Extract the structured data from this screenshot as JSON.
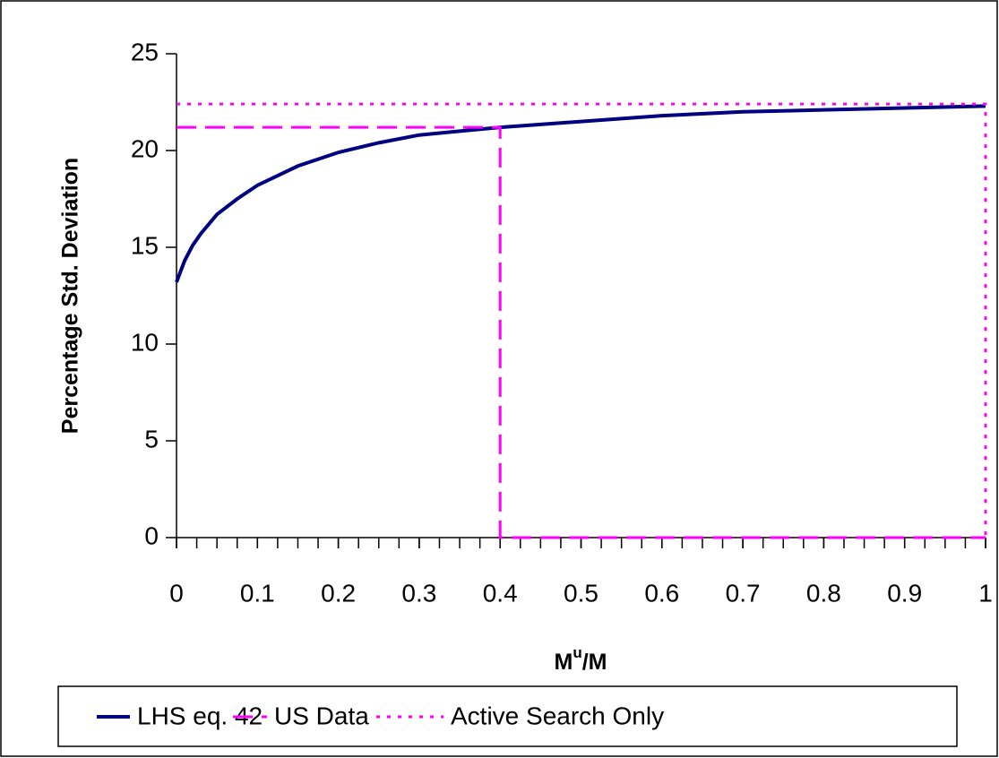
{
  "chart_data": {
    "type": "line",
    "ylabel": "Percentage Std. Deviation",
    "xlabel": [
      "M",
      "u",
      "/M"
    ],
    "xlim": [
      0,
      1
    ],
    "ylim": [
      0,
      25
    ],
    "xticks": [
      0,
      0.1,
      0.2,
      0.3,
      0.4,
      0.5,
      0.6,
      0.7,
      0.8,
      0.9,
      1
    ],
    "xminorticks": [
      0,
      0.025,
      0.05,
      0.075,
      0.1,
      0.125,
      0.15,
      0.175,
      0.2,
      0.225,
      0.25,
      0.275,
      0.3,
      0.325,
      0.35,
      0.375,
      0.4,
      0.425,
      0.45,
      0.475,
      0.5,
      0.525,
      0.55,
      0.575,
      0.6,
      0.625,
      0.65,
      0.675,
      0.7,
      0.725,
      0.75,
      0.775,
      0.8,
      0.825,
      0.85,
      0.875,
      0.9,
      0.925,
      0.95,
      0.975,
      1
    ],
    "yticks": [
      0,
      5,
      10,
      15,
      20,
      25
    ],
    "legend": "bottom",
    "series": [
      {
        "name": "LHS eq. 42",
        "color": "#000080",
        "style": "solid",
        "x": [
          0,
          0.01,
          0.02,
          0.03,
          0.05,
          0.075,
          0.1,
          0.15,
          0.2,
          0.25,
          0.3,
          0.35,
          0.4,
          0.5,
          0.6,
          0.7,
          0.8,
          0.9,
          1
        ],
        "values": [
          13.2,
          14.3,
          15.1,
          15.7,
          16.7,
          17.5,
          18.2,
          19.2,
          19.9,
          20.4,
          20.8,
          21.0,
          21.2,
          21.5,
          21.8,
          22.0,
          22.1,
          22.2,
          22.3
        ]
      },
      {
        "name": "US Data",
        "color": "#ff00ff",
        "style": "dashed",
        "x": [
          0,
          0.4,
          0.4,
          1
        ],
        "values": [
          21.2,
          21.2,
          0,
          0
        ]
      },
      {
        "name": "Active Search Only",
        "color": "#ff00ff",
        "style": "dotted",
        "x": [
          0,
          1,
          1
        ],
        "values": [
          22.4,
          22.4,
          0
        ]
      }
    ]
  }
}
